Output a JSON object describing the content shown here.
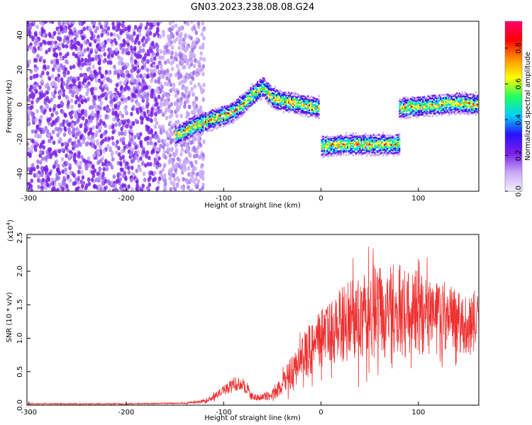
{
  "title": "GN03.2023.238.08.08.G24",
  "chart_data": [
    {
      "type": "heatmap",
      "xlabel": "Height of straight line (km)",
      "ylabel": "Frequency (Hz)",
      "xlim": [
        -302,
        162
      ],
      "ylim": [
        -50,
        48
      ],
      "xticks": [
        -300,
        -200,
        -100,
        0,
        100
      ],
      "yticks": [
        -40,
        -20,
        0,
        20,
        40
      ],
      "colorbar": {
        "label": "Normalized spectral amplitude",
        "range": [
          0.0,
          0.95
        ],
        "ticks": [
          "0.0",
          "0.2",
          "0.4",
          "0.6",
          "0.8"
        ],
        "colors": [
          "#f5f0ff",
          "#c8a8f8",
          "#7a20e8",
          "#2a10ff",
          "#00d0ff",
          "#20ff60",
          "#ffff00",
          "#ff9000",
          "#ff0000",
          "#ff0070"
        ]
      },
      "features": [
        {
          "segment": "broadband noise",
          "x_range": [
            -302,
            -130
          ],
          "freq_range": [
            -50,
            48
          ]
        },
        {
          "segment": "rising trace",
          "points": [
            [
              -150,
              -18
            ],
            [
              -130,
              -12
            ],
            [
              -110,
              -8
            ],
            [
              -90,
              -4
            ],
            [
              -70,
              6
            ],
            [
              -60,
              10
            ],
            [
              -50,
              4
            ],
            [
              -40,
              2
            ],
            [
              -20,
              0
            ],
            [
              -2,
              -2
            ]
          ]
        },
        {
          "segment": "shifted trace",
          "points": [
            [
              0,
              -24
            ],
            [
              20,
              -23
            ],
            [
              40,
              -23
            ],
            [
              60,
              -23
            ],
            [
              80,
              -23
            ]
          ]
        },
        {
          "segment": "upper trace",
          "points": [
            [
              80,
              -2
            ],
            [
              100,
              -1
            ],
            [
              120,
              0
            ],
            [
              140,
              1
            ],
            [
              162,
              0
            ]
          ]
        }
      ]
    },
    {
      "type": "line",
      "xlabel": "Height of straight line (km)",
      "ylabel": "SNR (10 * v/v)",
      "y_multiplier": "(x10",
      "y_multiplier_exp": "4",
      "y_multiplier_close": ")",
      "xlim": [
        -302,
        162
      ],
      "ylim": [
        0,
        2.55
      ],
      "xticks": [
        -300,
        -200,
        -100,
        0,
        100
      ],
      "yticks": [
        "0.0",
        "0.5",
        "1.0",
        "1.5",
        "2.0",
        "2.5"
      ],
      "color": "#ee3030",
      "envelope": {
        "x": [
          -302,
          -200,
          -140,
          -120,
          -110,
          -100,
          -90,
          -80,
          -75,
          -70,
          -60,
          -50,
          -40,
          -30,
          -20,
          -10,
          0,
          20,
          40,
          60,
          80,
          100,
          120,
          140,
          162
        ],
        "mean": [
          0.02,
          0.02,
          0.03,
          0.06,
          0.12,
          0.22,
          0.32,
          0.3,
          0.22,
          0.12,
          0.12,
          0.15,
          0.3,
          0.5,
          0.7,
          0.85,
          1.0,
          1.2,
          1.3,
          1.4,
          1.4,
          1.35,
          1.3,
          1.25,
          1.25
        ],
        "spread": [
          0.01,
          0.01,
          0.01,
          0.03,
          0.05,
          0.08,
          0.1,
          0.1,
          0.08,
          0.05,
          0.05,
          0.08,
          0.15,
          0.25,
          0.35,
          0.4,
          0.45,
          0.55,
          0.65,
          0.7,
          0.7,
          0.65,
          0.55,
          0.5,
          0.45
        ]
      }
    }
  ]
}
